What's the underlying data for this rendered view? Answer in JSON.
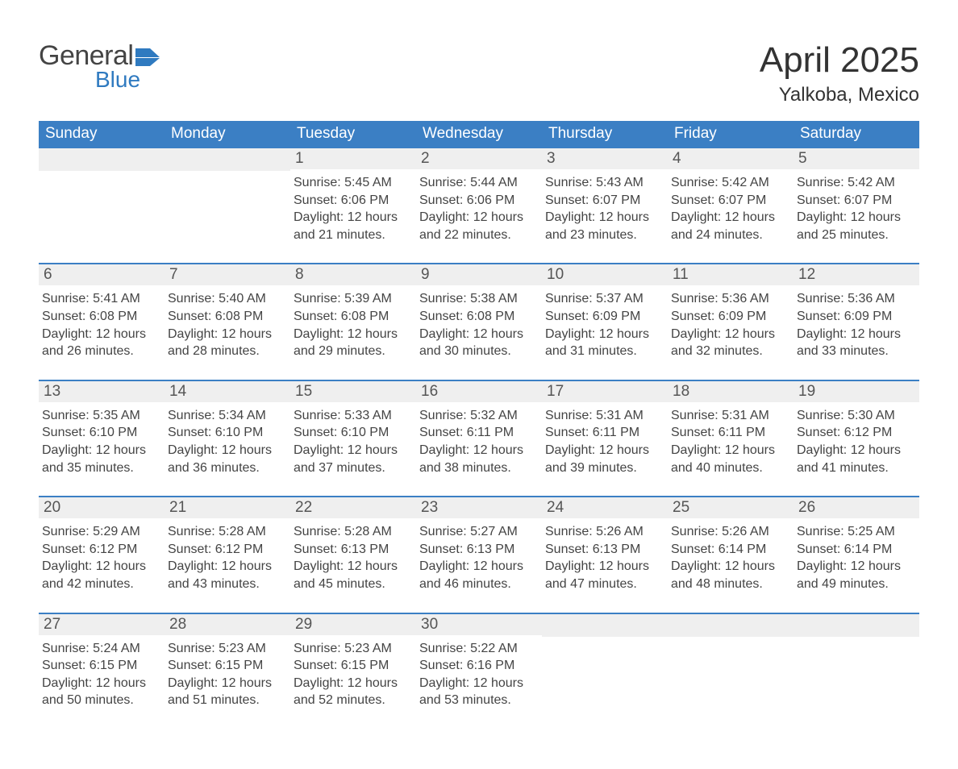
{
  "logo": {
    "text_general": "General",
    "text_blue": "Blue",
    "flag_color": "#2f7ac0"
  },
  "title": "April 2025",
  "location": "Yalkoba, Mexico",
  "colors": {
    "header_bg": "#3b7fc4",
    "header_text": "#ffffff",
    "daynum_bg": "#efefef",
    "daynum_text": "#555555",
    "body_text": "#444444",
    "week_border": "#3b7fc4",
    "logo_blue": "#2f7ac0"
  },
  "day_headers": [
    "Sunday",
    "Monday",
    "Tuesday",
    "Wednesday",
    "Thursday",
    "Friday",
    "Saturday"
  ],
  "weeks": [
    [
      null,
      null,
      {
        "n": "1",
        "sunrise": "5:45 AM",
        "sunset": "6:06 PM",
        "daylight": "12 hours and 21 minutes."
      },
      {
        "n": "2",
        "sunrise": "5:44 AM",
        "sunset": "6:06 PM",
        "daylight": "12 hours and 22 minutes."
      },
      {
        "n": "3",
        "sunrise": "5:43 AM",
        "sunset": "6:07 PM",
        "daylight": "12 hours and 23 minutes."
      },
      {
        "n": "4",
        "sunrise": "5:42 AM",
        "sunset": "6:07 PM",
        "daylight": "12 hours and 24 minutes."
      },
      {
        "n": "5",
        "sunrise": "5:42 AM",
        "sunset": "6:07 PM",
        "daylight": "12 hours and 25 minutes."
      }
    ],
    [
      {
        "n": "6",
        "sunrise": "5:41 AM",
        "sunset": "6:08 PM",
        "daylight": "12 hours and 26 minutes."
      },
      {
        "n": "7",
        "sunrise": "5:40 AM",
        "sunset": "6:08 PM",
        "daylight": "12 hours and 28 minutes."
      },
      {
        "n": "8",
        "sunrise": "5:39 AM",
        "sunset": "6:08 PM",
        "daylight": "12 hours and 29 minutes."
      },
      {
        "n": "9",
        "sunrise": "5:38 AM",
        "sunset": "6:08 PM",
        "daylight": "12 hours and 30 minutes."
      },
      {
        "n": "10",
        "sunrise": "5:37 AM",
        "sunset": "6:09 PM",
        "daylight": "12 hours and 31 minutes."
      },
      {
        "n": "11",
        "sunrise": "5:36 AM",
        "sunset": "6:09 PM",
        "daylight": "12 hours and 32 minutes."
      },
      {
        "n": "12",
        "sunrise": "5:36 AM",
        "sunset": "6:09 PM",
        "daylight": "12 hours and 33 minutes."
      }
    ],
    [
      {
        "n": "13",
        "sunrise": "5:35 AM",
        "sunset": "6:10 PM",
        "daylight": "12 hours and 35 minutes."
      },
      {
        "n": "14",
        "sunrise": "5:34 AM",
        "sunset": "6:10 PM",
        "daylight": "12 hours and 36 minutes."
      },
      {
        "n": "15",
        "sunrise": "5:33 AM",
        "sunset": "6:10 PM",
        "daylight": "12 hours and 37 minutes."
      },
      {
        "n": "16",
        "sunrise": "5:32 AM",
        "sunset": "6:11 PM",
        "daylight": "12 hours and 38 minutes."
      },
      {
        "n": "17",
        "sunrise": "5:31 AM",
        "sunset": "6:11 PM",
        "daylight": "12 hours and 39 minutes."
      },
      {
        "n": "18",
        "sunrise": "5:31 AM",
        "sunset": "6:11 PM",
        "daylight": "12 hours and 40 minutes."
      },
      {
        "n": "19",
        "sunrise": "5:30 AM",
        "sunset": "6:12 PM",
        "daylight": "12 hours and 41 minutes."
      }
    ],
    [
      {
        "n": "20",
        "sunrise": "5:29 AM",
        "sunset": "6:12 PM",
        "daylight": "12 hours and 42 minutes."
      },
      {
        "n": "21",
        "sunrise": "5:28 AM",
        "sunset": "6:12 PM",
        "daylight": "12 hours and 43 minutes."
      },
      {
        "n": "22",
        "sunrise": "5:28 AM",
        "sunset": "6:13 PM",
        "daylight": "12 hours and 45 minutes."
      },
      {
        "n": "23",
        "sunrise": "5:27 AM",
        "sunset": "6:13 PM",
        "daylight": "12 hours and 46 minutes."
      },
      {
        "n": "24",
        "sunrise": "5:26 AM",
        "sunset": "6:13 PM",
        "daylight": "12 hours and 47 minutes."
      },
      {
        "n": "25",
        "sunrise": "5:26 AM",
        "sunset": "6:14 PM",
        "daylight": "12 hours and 48 minutes."
      },
      {
        "n": "26",
        "sunrise": "5:25 AM",
        "sunset": "6:14 PM",
        "daylight": "12 hours and 49 minutes."
      }
    ],
    [
      {
        "n": "27",
        "sunrise": "5:24 AM",
        "sunset": "6:15 PM",
        "daylight": "12 hours and 50 minutes."
      },
      {
        "n": "28",
        "sunrise": "5:23 AM",
        "sunset": "6:15 PM",
        "daylight": "12 hours and 51 minutes."
      },
      {
        "n": "29",
        "sunrise": "5:23 AM",
        "sunset": "6:15 PM",
        "daylight": "12 hours and 52 minutes."
      },
      {
        "n": "30",
        "sunrise": "5:22 AM",
        "sunset": "6:16 PM",
        "daylight": "12 hours and 53 minutes."
      },
      null,
      null,
      null
    ]
  ],
  "labels": {
    "sunrise": "Sunrise: ",
    "sunset": "Sunset: ",
    "daylight": "Daylight: "
  }
}
